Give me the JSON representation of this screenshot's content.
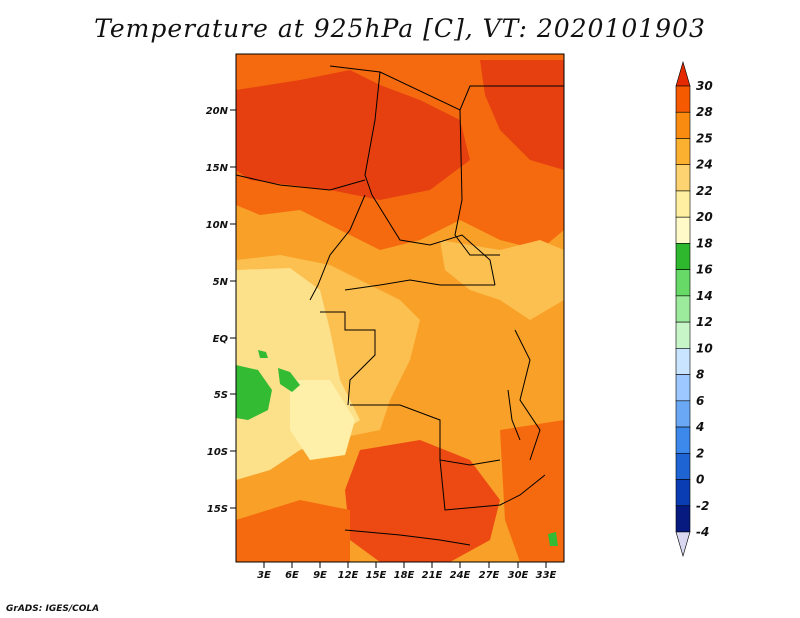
{
  "title": "Temperature at 925hPa [C], VT: 2020101903",
  "credit": "GrADS: IGES/COLA",
  "lon_labels": [
    "3E",
    "6E",
    "9E",
    "12E",
    "15E",
    "18E",
    "21E",
    "24E",
    "27E",
    "30E",
    "33E"
  ],
  "lat_labels": [
    "20N",
    "15N",
    "10N",
    "5N",
    "EQ",
    "5S",
    "10S",
    "15S"
  ],
  "colorbar": {
    "labels": [
      "30",
      "28",
      "25",
      "24",
      "22",
      "20",
      "18",
      "16",
      "14",
      "12",
      "10",
      "8",
      "6",
      "4",
      "2",
      "0",
      "-2",
      "-4"
    ],
    "colors": [
      "#e52a00",
      "#f55a00",
      "#f98c10",
      "#fbb030",
      "#fdd270",
      "#fef0a0",
      "#fffac8",
      "#2eb82e",
      "#66d966",
      "#9ceb9c",
      "#c8f5c8",
      "#c8e4ff",
      "#9cc8ff",
      "#6aa8f5",
      "#3c88eb",
      "#1e64d2",
      "#0a3cb4",
      "#061a80",
      "#000060",
      "#d8d8f0"
    ]
  },
  "colors": {
    "sahara": "#e64010",
    "sahel": "#f56a0e",
    "mid": "#f8a028",
    "basin": "#fcc050",
    "coast": "#fde08a",
    "ocean_warm": "#fdd070",
    "ocean_cool": "#fef0a8",
    "green": "#33bb33",
    "south": "#ec4a12",
    "border": "#000000"
  }
}
